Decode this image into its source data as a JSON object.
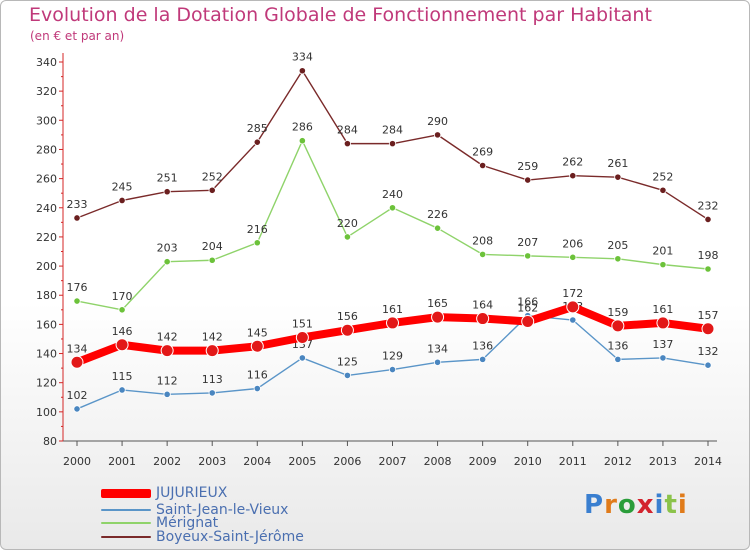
{
  "title": "Evolution de la Dotation Globale de Fonctionnement par Habitant",
  "subtitle": "(en € et par an)",
  "logo": {
    "text": "Proxiti",
    "colors": [
      "#3a7fd0",
      "#e07b1a",
      "#2a9d3a",
      "#d3242e",
      "#3a7fd0",
      "#8bc34a",
      "#e07b1a"
    ]
  },
  "chart_data": {
    "type": "line",
    "title": "Evolution de la Dotation Globale de Fonctionnement par Habitant",
    "subtitle": "(en € et par an)",
    "x": [
      "2000",
      "2001",
      "2002",
      "2003",
      "2004",
      "2005",
      "2006",
      "2007",
      "2008",
      "2009",
      "2010",
      "2011",
      "2012",
      "2013",
      "2014"
    ],
    "ylim": [
      80,
      340
    ],
    "yticks": [
      "80",
      "100",
      "120",
      "140",
      "160",
      "180",
      "200",
      "220",
      "240",
      "260",
      "280",
      "300",
      "320",
      "340"
    ],
    "grid": false,
    "series": [
      {
        "name": "Boyeux-Saint-Jérôme",
        "color": "#7a2a2a",
        "pointColor": "#6b1f1f",
        "values": [
          233,
          245,
          251,
          252,
          285,
          334,
          284,
          284,
          290,
          269,
          259,
          262,
          261,
          252,
          232
        ],
        "labels": [
          "233",
          "245",
          "251",
          "252",
          "285",
          "334",
          "284",
          "284",
          "290",
          "269",
          "259",
          "262",
          "261",
          "252",
          "232"
        ]
      },
      {
        "name": "Mérignat",
        "color": "#8fd36a",
        "pointColor": "#6cc23a",
        "values": [
          176,
          170,
          203,
          204,
          216,
          286,
          220,
          240,
          226,
          208,
          207,
          206,
          205,
          201,
          198
        ],
        "labels": [
          "176",
          "170",
          "203",
          "204",
          "216",
          "286",
          "220",
          "240",
          "226",
          "208",
          "207",
          "206",
          "205",
          "201",
          "198"
        ]
      },
      {
        "name": "Saint-Jean-le-Vieux",
        "color": "#5a95c8",
        "pointColor": "#4a86c0",
        "values": [
          102,
          115,
          112,
          113,
          116,
          137,
          125,
          129,
          134,
          136,
          166,
          163,
          136,
          137,
          132
        ],
        "labels": [
          "102",
          "115",
          "112",
          "113",
          "116",
          "137",
          "125",
          "129",
          "134",
          "136",
          "166",
          "163",
          "136",
          "137",
          "132"
        ]
      },
      {
        "name": "JUJURIEUX",
        "color": "#ff0000",
        "pointColor": "#e21818",
        "values": [
          134,
          146,
          142,
          142,
          145,
          151,
          156,
          161,
          165,
          164,
          162,
          172,
          159,
          161,
          157
        ],
        "labels": [
          "134",
          "146",
          "142",
          "142",
          "145",
          "151",
          "156",
          "161",
          "165",
          "164",
          "162",
          "172",
          "159",
          "161",
          "157"
        ]
      }
    ]
  }
}
